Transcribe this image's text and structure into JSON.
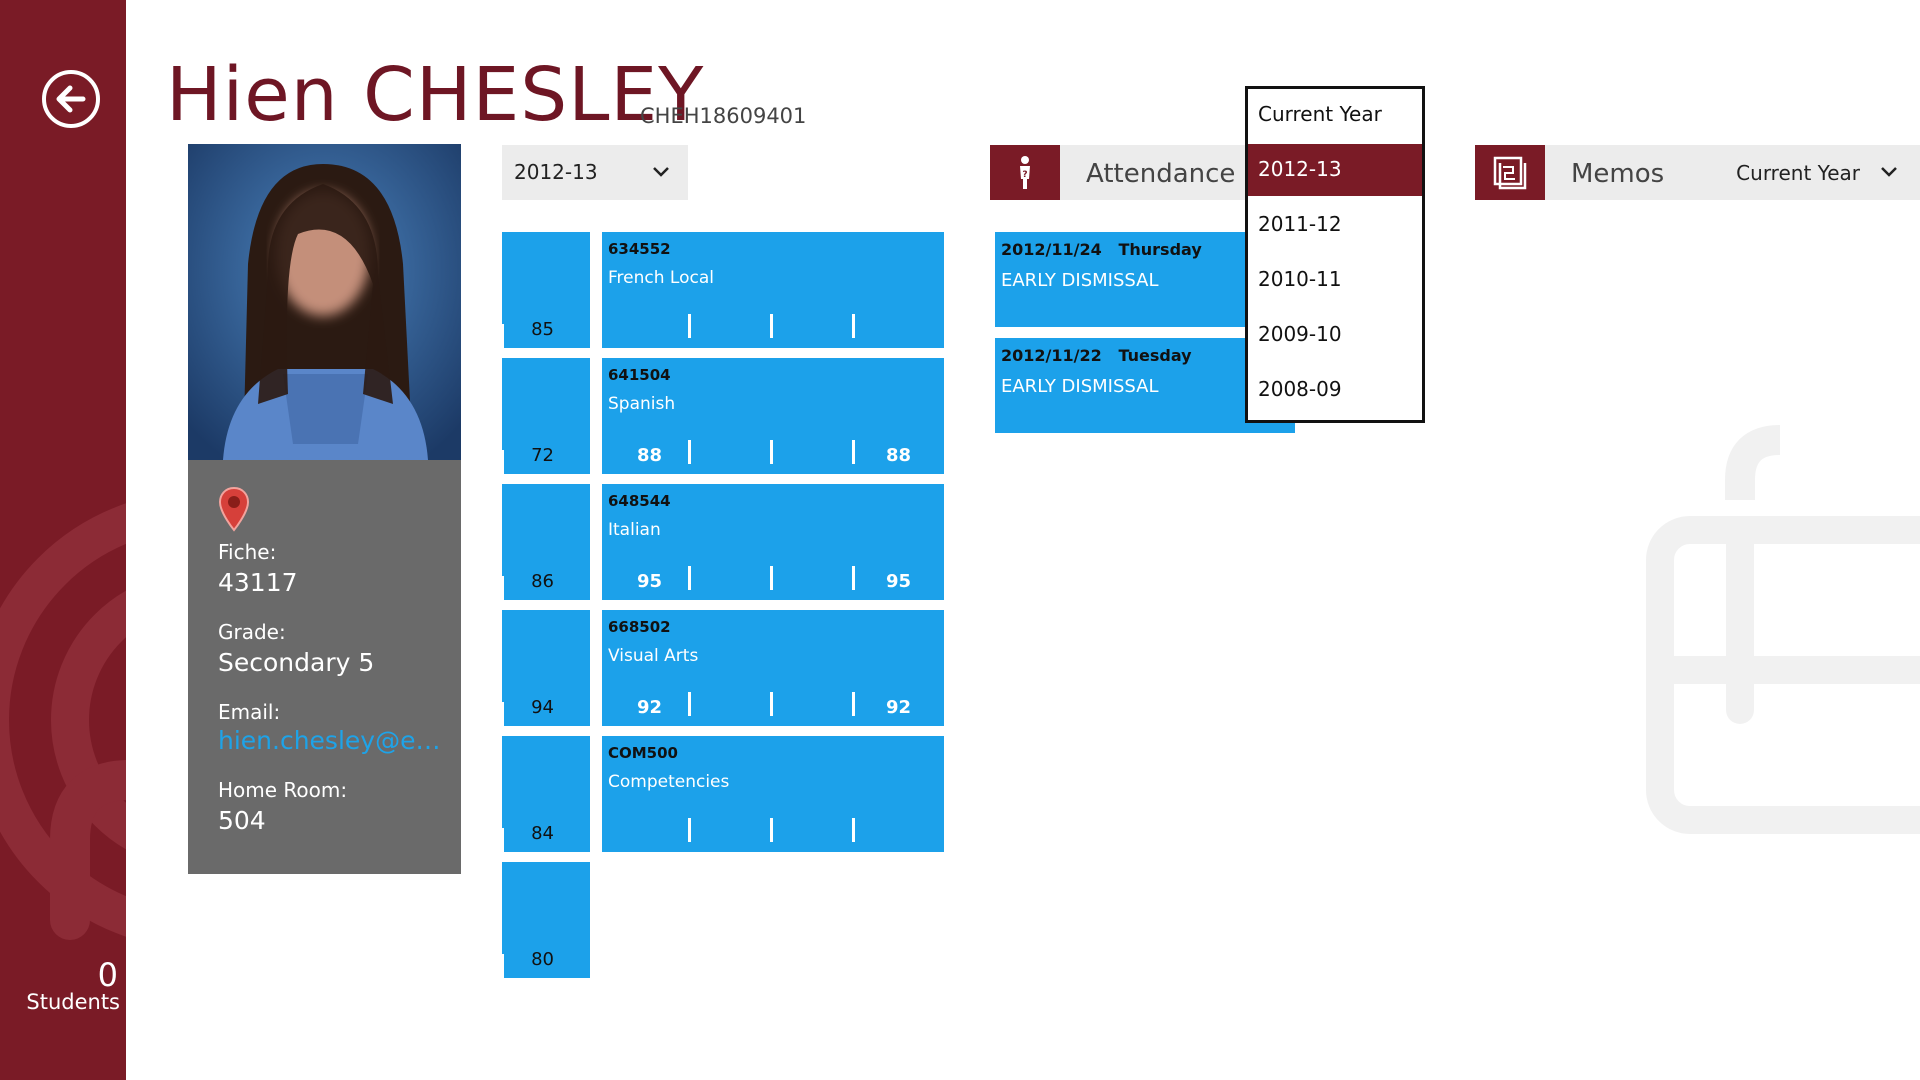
{
  "sidebar": {
    "student_count": "0",
    "students_label": "Students"
  },
  "header": {
    "name": "Hien CHESLEY",
    "student_id": "CHEH18609401"
  },
  "profile": {
    "fiche_label": "Fiche:",
    "fiche_value": "43117",
    "grade_label": "Grade:",
    "grade_value": "Secondary 5",
    "email_label": "Email:",
    "email_value": "hien.chesley@ema...",
    "homeroom_label": "Home Room:",
    "homeroom_value": "504"
  },
  "grades": {
    "year_selected": "2012-13",
    "small_tiles": [
      "85",
      "72",
      "86",
      "94",
      "84",
      "80"
    ],
    "courses": [
      {
        "code": "634552",
        "name": "French Local",
        "grade_first": "",
        "grade_last": ""
      },
      {
        "code": "641504",
        "name": "Spanish",
        "grade_first": "88",
        "grade_last": "88"
      },
      {
        "code": "648544",
        "name": "Italian",
        "grade_first": "95",
        "grade_last": "95"
      },
      {
        "code": "668502",
        "name": "Visual Arts",
        "grade_first": "92",
        "grade_last": "92"
      },
      {
        "code": "COM500",
        "name": "Competencies",
        "grade_first": "",
        "grade_last": ""
      }
    ]
  },
  "attendance": {
    "title": "Attendance",
    "records": [
      {
        "date": "2012/11/24",
        "day": "Thursday",
        "reason": "EARLY DISMISSAL"
      },
      {
        "date": "2012/11/22",
        "day": "Tuesday",
        "reason": "EARLY DISMISSAL"
      }
    ]
  },
  "year_dropdown": {
    "options": [
      "Current Year",
      "2012-13",
      "2011-12",
      "2010-11",
      "2009-10",
      "2008-09"
    ],
    "selected": "2012-13"
  },
  "memos": {
    "title": "Memos",
    "year_selected": "Current Year"
  },
  "colors": {
    "brand": "#7a1b26",
    "tile": "#1ca1ea",
    "card": "#6a6a6a",
    "link": "#1ea3e8"
  }
}
